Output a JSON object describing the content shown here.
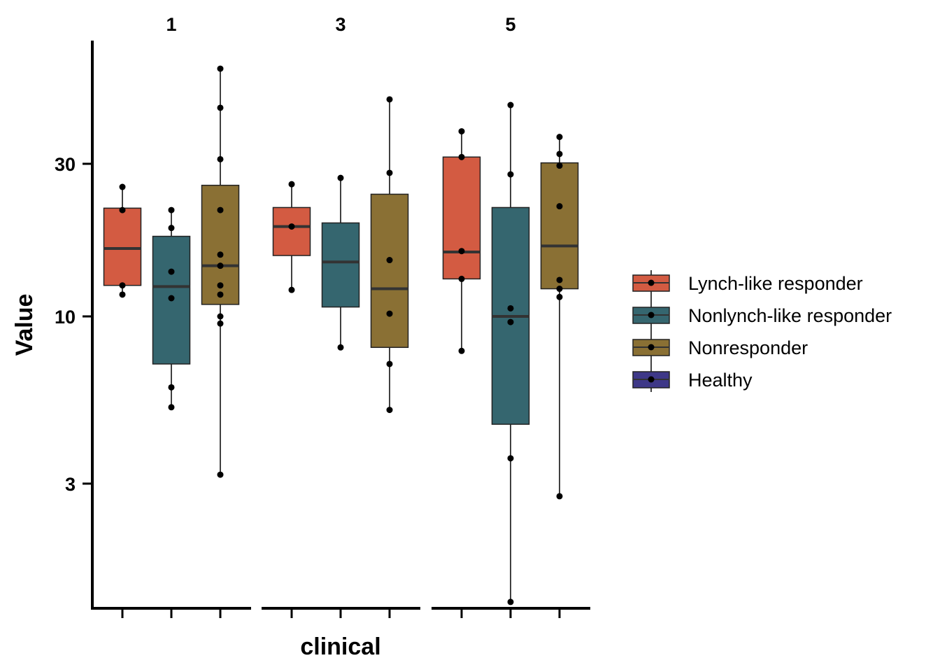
{
  "chart_data": {
    "type": "boxplot",
    "facet_by": "clinical",
    "scale": "log",
    "xlabel": "clinical",
    "ylabel": "Value",
    "ylim": [
      1.28,
      66
    ],
    "yticks": [
      3,
      10,
      30
    ],
    "ytick_labels": [
      "3",
      "10",
      "30"
    ],
    "legend_position": "right",
    "series": [
      {
        "name": "Lynch-like responder",
        "color": "#D35B42"
      },
      {
        "name": "Nonlynch-like responder",
        "color": "#35666F"
      },
      {
        "name": "Nonresponder",
        "color": "#8A7034"
      },
      {
        "name": "Healthy",
        "color": "#3E3888"
      }
    ],
    "facets": [
      {
        "label": "1",
        "groups": [
          {
            "series": "Lynch-like responder",
            "q1": 12.5,
            "median": 16.3,
            "q3": 21.8,
            "whisker_low": 11.7,
            "whisker_high": 25.4,
            "points": [
              25.4,
              21.5,
              12.5,
              11.7
            ]
          },
          {
            "series": "Nonlynch-like responder",
            "q1": 7.1,
            "median": 12.4,
            "q3": 17.8,
            "whisker_low": 5.2,
            "whisker_high": 21.5,
            "points": [
              21.5,
              18.9,
              13.8,
              11.4,
              6.0,
              5.2
            ]
          },
          {
            "series": "Nonresponder",
            "q1": 10.9,
            "median": 14.4,
            "q3": 25.7,
            "whisker_low": 3.2,
            "whisker_high": 59.5,
            "points": [
              59.5,
              44.9,
              31.0,
              21.5,
              15.6,
              14.4,
              12.5,
              11.7,
              10.0,
              9.5,
              3.2
            ]
          }
        ]
      },
      {
        "label": "3",
        "groups": [
          {
            "series": "Lynch-like responder",
            "q1": 15.5,
            "median": 19.1,
            "q3": 21.9,
            "whisker_low": 12.1,
            "whisker_high": 25.9,
            "points": [
              25.9,
              19.1,
              12.1
            ]
          },
          {
            "series": "Nonlynch-like responder",
            "q1": 10.7,
            "median": 14.8,
            "q3": 19.6,
            "whisker_low": 8.0,
            "whisker_high": 27.1,
            "points": [
              27.1,
              8.0
            ]
          },
          {
            "series": "Nonresponder",
            "q1": 8.0,
            "median": 12.2,
            "q3": 24.1,
            "whisker_low": 5.1,
            "whisker_high": 47.7,
            "points": [
              47.7,
              28.1,
              15.0,
              10.2,
              7.1,
              5.1
            ]
          }
        ]
      },
      {
        "label": "5",
        "groups": [
          {
            "series": "Lynch-like responder",
            "q1": 13.1,
            "median": 15.9,
            "q3": 31.5,
            "whisker_low": 7.8,
            "whisker_high": 37.9,
            "points": [
              37.9,
              31.5,
              16.0,
              13.1,
              7.8
            ]
          },
          {
            "series": "Nonlynch-like responder",
            "q1": 4.6,
            "median": 10.0,
            "q3": 21.9,
            "whisker_low": 1.28,
            "whisker_high": 45.8,
            "points": [
              45.8,
              27.8,
              10.6,
              9.6,
              3.6,
              1.28
            ]
          },
          {
            "series": "Nonresponder",
            "q1": 12.2,
            "median": 16.6,
            "q3": 30.2,
            "whisker_low": 2.74,
            "whisker_high": 36.4,
            "points": [
              36.4,
              32.2,
              29.6,
              22.1,
              13.0,
              12.2,
              11.5,
              2.74
            ]
          }
        ]
      }
    ]
  }
}
